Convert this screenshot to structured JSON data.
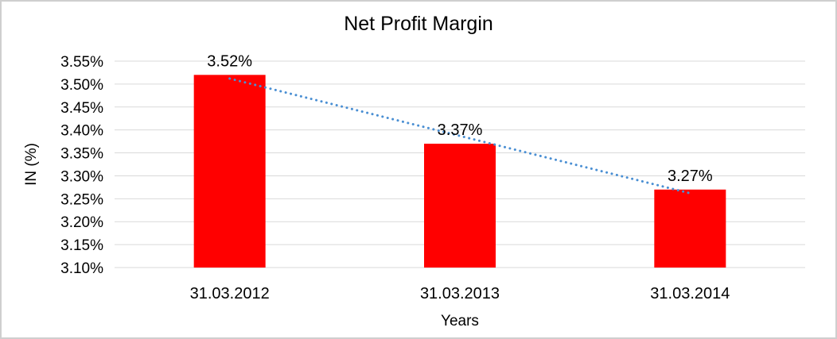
{
  "chart_data": {
    "type": "bar",
    "title": "Net Profit Margin",
    "xlabel": "Years",
    "ylabel": "IN (%)",
    "categories": [
      "31.03.2012",
      "31.03.2013",
      "31.03.2014"
    ],
    "series": [
      {
        "name": "Net Profit Margin",
        "values": [
          3.52,
          3.37,
          3.27
        ]
      }
    ],
    "data_labels": [
      "3.52%",
      "3.37%",
      "3.27%"
    ],
    "ylim": [
      3.1,
      3.55
    ],
    "ytick_step": 0.05,
    "ytick_labels": [
      "3.10%",
      "3.15%",
      "3.20%",
      "3.25%",
      "3.30%",
      "3.35%",
      "3.40%",
      "3.45%",
      "3.50%",
      "3.55%"
    ],
    "grid": true,
    "legend": "none",
    "trendline": {
      "type": "linear",
      "style": "dotted",
      "values": [
        3.512,
        3.387,
        3.262
      ]
    },
    "colors": {
      "bar": "#ff0000",
      "trendline": "#4a8fd3",
      "gridline": "#d9d9d9",
      "text": "#000000",
      "background": "#ffffff",
      "frame_border": "#cfcfcf"
    }
  }
}
